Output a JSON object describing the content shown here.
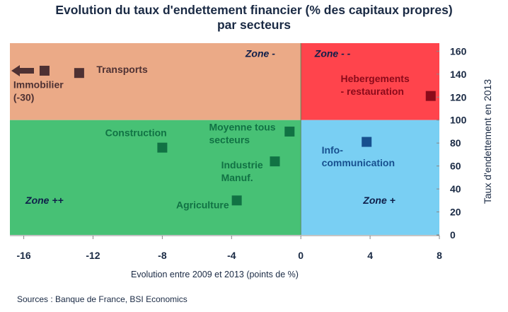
{
  "chart_data": {
    "type": "scatter",
    "title_line1": "Evolution du taux d'endettement financier (% des capitaux propres)",
    "title_line2": "par secteurs",
    "xlabel": "Evolution entre 2009 et 2013 (points de %)",
    "ylabel": "Taux d'endettement en 2013",
    "xlim": [
      -16.8,
      8
    ],
    "ylim": [
      0,
      167
    ],
    "xticks": [
      -16,
      -12,
      -8,
      -4,
      0,
      4,
      8
    ],
    "xtick_labels": [
      "-16",
      "-12",
      "-8",
      "-4",
      "0",
      "4",
      "8"
    ],
    "yticks": [
      0,
      20,
      40,
      60,
      80,
      100,
      120,
      140,
      160
    ],
    "ytick_labels": [
      "0",
      "20",
      "40",
      "60",
      "80",
      "100",
      "120",
      "140",
      "160"
    ],
    "zones": [
      {
        "label": "Zone -",
        "x": [
          -16.8,
          0
        ],
        "y": [
          100,
          167
        ],
        "color": "#EBAA87",
        "label_at": [
          -3.2,
          155
        ]
      },
      {
        "label": "Zone - -",
        "x": [
          0,
          8
        ],
        "y": [
          100,
          167
        ],
        "color": "#FF444C",
        "label_at": [
          0.8,
          155
        ]
      },
      {
        "label": "Zone ++",
        "x": [
          -16.8,
          0
        ],
        "y": [
          0,
          100
        ],
        "color": "#47C175",
        "label_at": [
          -15.9,
          27
        ]
      },
      {
        "label": "Zone +",
        "x": [
          0,
          8
        ],
        "y": [
          0,
          100
        ],
        "color": "#79CFF3",
        "label_at": [
          3.6,
          27
        ]
      }
    ],
    "points": [
      {
        "name": "Immobilier",
        "label_lines": [
          "Immobilier",
          "(-30)"
        ],
        "x": -14.8,
        "y": 143,
        "color": "#4E3133",
        "text_color": "#4E3133",
        "off_chart_value": -30,
        "arrow": true,
        "label_at": [
          -16.6,
          128
        ]
      },
      {
        "name": "Transports",
        "label_lines": [
          "Transports"
        ],
        "x": -12.8,
        "y": 141,
        "color": "#4E3133",
        "text_color": "#4E3133",
        "label_at": [
          -11.8,
          141
        ]
      },
      {
        "name": "Construction",
        "label_lines": [
          "Construction"
        ],
        "x": -8.0,
        "y": 76,
        "color": "#117244",
        "text_color": "#117244",
        "label_at": [
          -11.3,
          86
        ]
      },
      {
        "name": "Moyenne tous secteurs",
        "label_lines": [
          "Moyenne tous",
          "secteurs"
        ],
        "x": -0.65,
        "y": 90,
        "color": "#117244",
        "text_color": "#117244",
        "label_at": [
          -5.3,
          91
        ]
      },
      {
        "name": "Industrie Manuf.",
        "label_lines": [
          "Industrie",
          "Manuf."
        ],
        "x": -1.5,
        "y": 64,
        "color": "#117244",
        "text_color": "#117244",
        "label_at": [
          -4.6,
          58
        ]
      },
      {
        "name": "Agriculture",
        "label_lines": [
          "Agriculture"
        ],
        "x": -3.7,
        "y": 30,
        "color": "#117244",
        "text_color": "#117244",
        "label_at": [
          -7.2,
          23
        ]
      },
      {
        "name": "Info-communication",
        "label_lines": [
          "Info-",
          "communication"
        ],
        "x": 3.8,
        "y": 81,
        "color": "#17508F",
        "text_color": "#17508F",
        "label_at": [
          1.2,
          71
        ]
      },
      {
        "name": "Hebergements - restauration",
        "label_lines": [
          "Hebergements",
          "- restauration"
        ],
        "x": 7.5,
        "y": 121,
        "color": "#8B0A1A",
        "text_color": "#8B0A1A",
        "label_at": [
          2.3,
          133
        ]
      }
    ]
  },
  "source": "Sources : Banque de France, BSI Economics"
}
